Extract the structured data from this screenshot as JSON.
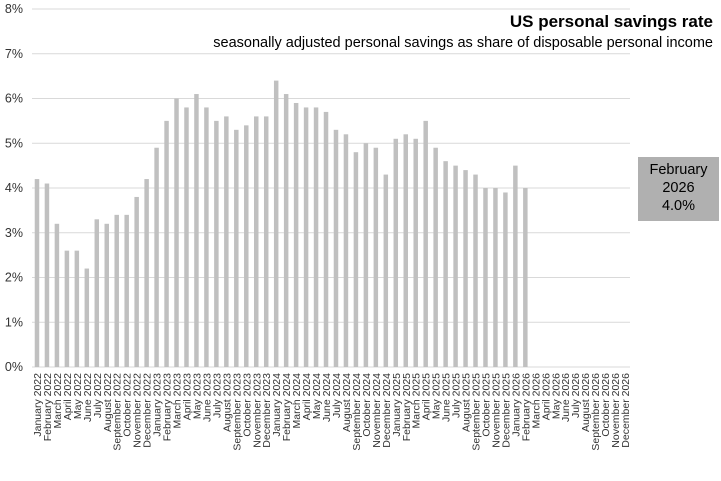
{
  "chart_data": {
    "type": "bar",
    "title": "US personal savings rate",
    "subtitle": "seasonally adjusted personal savings as share of disposable personal income",
    "ylim": [
      0,
      8
    ],
    "yticks": [
      "0%",
      "1%",
      "2%",
      "3%",
      "4%",
      "5%",
      "6%",
      "7%",
      "8%"
    ],
    "grid": true,
    "bar_color": "#c0c0c0",
    "categories": [
      "January 2022",
      "February 2022",
      "March 2022",
      "April 2022",
      "May 2022",
      "June 2022",
      "July 2022",
      "August 2022",
      "September 2022",
      "October 2022",
      "November 2022",
      "December 2022",
      "January 2023",
      "February 2023",
      "March 2023",
      "April 2023",
      "May 2023",
      "June 2023",
      "July 2023",
      "August 2023",
      "September 2023",
      "October 2023",
      "November 2023",
      "December 2023",
      "January 2024",
      "February 2024",
      "March 2024",
      "April 2024",
      "May 2024",
      "June 2024",
      "July 2024",
      "August 2024",
      "September 2024",
      "October 2024",
      "November 2024",
      "December 2024",
      "January 2025",
      "February 2025",
      "March 2025",
      "April 2025",
      "May 2025",
      "June 2025",
      "July 2025",
      "August 2025",
      "September 2025",
      "October 2025",
      "November 2025",
      "December 2025",
      "January 2026",
      "February 2026",
      "March 2026",
      "April 2026",
      "May 2026",
      "June 2026",
      "July 2026",
      "August 2026",
      "September 2026",
      "October 2026",
      "November 2026",
      "December 2026"
    ],
    "values": [
      4.2,
      4.1,
      3.2,
      2.6,
      2.6,
      2.2,
      3.3,
      3.2,
      3.4,
      3.4,
      3.8,
      4.2,
      4.9,
      5.5,
      6.0,
      5.8,
      6.1,
      5.8,
      5.5,
      5.6,
      5.3,
      5.4,
      5.6,
      5.6,
      6.4,
      6.1,
      5.9,
      5.8,
      5.8,
      5.7,
      5.3,
      5.2,
      4.8,
      5.0,
      4.9,
      4.3,
      5.1,
      5.2,
      5.1,
      5.5,
      4.9,
      4.6,
      4.5,
      4.4,
      4.3,
      4.0,
      4.0,
      3.9,
      4.5,
      4.0,
      null,
      null,
      null,
      null,
      null,
      null,
      null,
      null,
      null,
      null
    ],
    "callout": {
      "month": "February",
      "year": "2026",
      "value": "4.0%",
      "color": "#b0b0b0"
    }
  }
}
